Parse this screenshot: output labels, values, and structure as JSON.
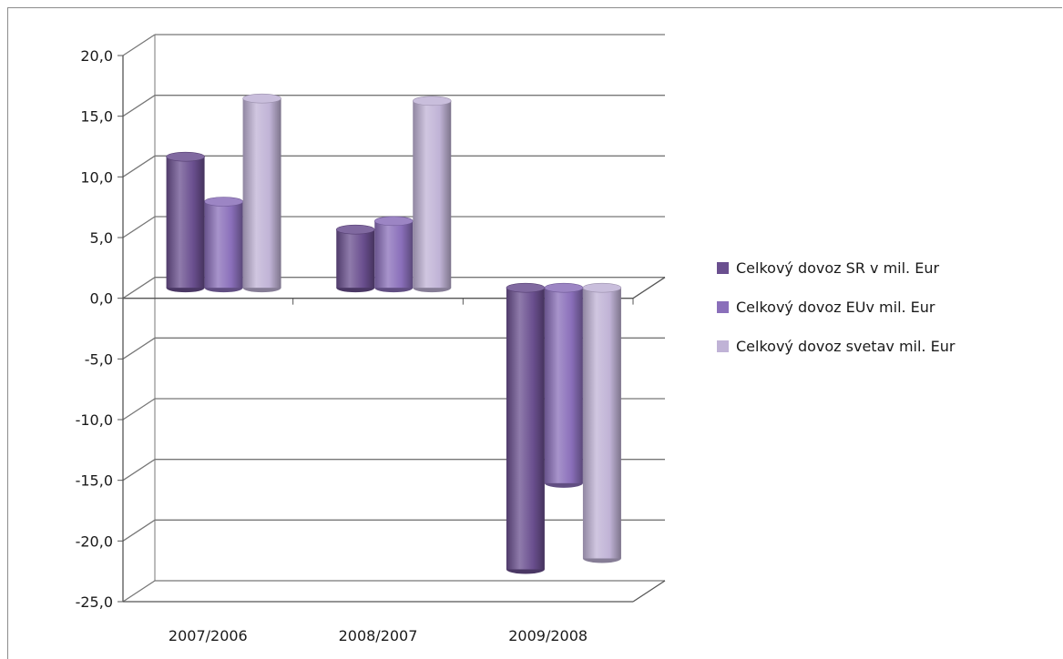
{
  "chart_data": {
    "type": "bar",
    "categories": [
      "2007/2006",
      "2008/2007",
      "2009/2008"
    ],
    "series": [
      {
        "name": "Celkový dovoz SR v mil. Eur",
        "values": [
          10.8,
          4.8,
          -23.2
        ],
        "color": "#6a4f8f"
      },
      {
        "name": "Celkový dovoz EUv mil. Eur",
        "values": [
          7.1,
          5.5,
          -16.1
        ],
        "color": "#8a6fba"
      },
      {
        "name": "Celkový dovoz svetav mil. Eur",
        "values": [
          15.6,
          15.4,
          -22.3
        ],
        "color": "#c0b3d6"
      }
    ],
    "ylim": [
      -25,
      20
    ],
    "yticks": [
      "20,0",
      "15,0",
      "10,0",
      "5,0",
      "0,0",
      "-5,0",
      "-10,0",
      "-15,0",
      "-20,0",
      "-25,0"
    ],
    "ytick_values": [
      20,
      15,
      10,
      5,
      0,
      -5,
      -10,
      -15,
      -20,
      -25
    ],
    "grid": true,
    "legend_position": "right",
    "style": "3d-cylinder"
  }
}
